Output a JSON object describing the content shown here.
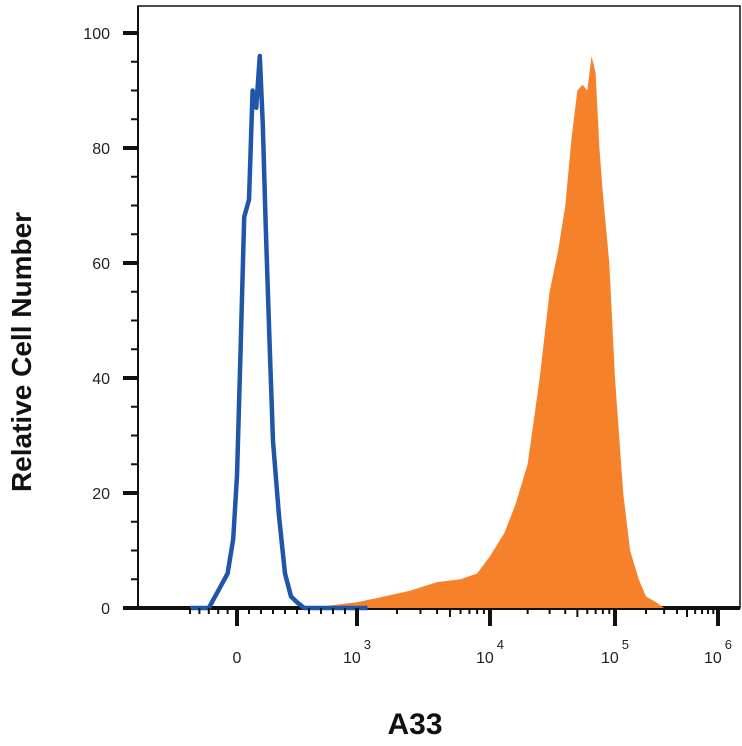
{
  "chart_data": {
    "type": "area",
    "xlabel": "A33",
    "ylabel": "Relative Cell Number",
    "xscale": "biexponential",
    "ylim": [
      0,
      100
    ],
    "y_ticks": [
      0,
      20,
      40,
      60,
      80,
      100
    ],
    "x_ticks": [
      {
        "base": "0",
        "exp": "",
        "value": 0
      },
      {
        "base": "10",
        "exp": "3",
        "value": 1000
      },
      {
        "base": "10",
        "exp": "4",
        "value": 10000
      },
      {
        "base": "10",
        "exp": "5",
        "value": 100000
      },
      {
        "base": "10",
        "exp": "6",
        "value": 1000000
      }
    ],
    "series": [
      {
        "style": "outline",
        "color": "#1f56a8",
        "x": [
          -500,
          -300,
          -200,
          -100,
          -40,
          0,
          30,
          60,
          100,
          130,
          160,
          190,
          215,
          240,
          270,
          300,
          350,
          400,
          450,
          500,
          560,
          620,
          700,
          800,
          900,
          1000,
          1200
        ],
        "y": [
          0,
          0,
          3,
          6,
          12,
          23,
          45,
          68,
          71,
          90,
          87,
          96,
          84,
          66,
          47,
          29,
          16,
          6,
          2,
          1,
          0,
          0,
          0,
          0,
          0,
          0,
          0
        ]
      },
      {
        "style": "filled",
        "color": "#f5822a",
        "x": [
          -500,
          600,
          1000,
          1600,
          2500,
          4000,
          6000,
          8000,
          10000,
          13000,
          16000,
          20000,
          25000,
          30000,
          35000,
          40000,
          45000,
          50000,
          55000,
          60000,
          65000,
          70000,
          75000,
          80000,
          90000,
          100000,
          120000,
          140000,
          170000,
          200000,
          250000,
          300000,
          400000,
          1000000
        ],
        "y": [
          0,
          0,
          1,
          2,
          3,
          4.5,
          5,
          6,
          9,
          13,
          18,
          25,
          40,
          55,
          62,
          70,
          82,
          90,
          91,
          90,
          96,
          93,
          80,
          72,
          60,
          40,
          20,
          10,
          5,
          2,
          1,
          0,
          0,
          0
        ]
      }
    ]
  }
}
